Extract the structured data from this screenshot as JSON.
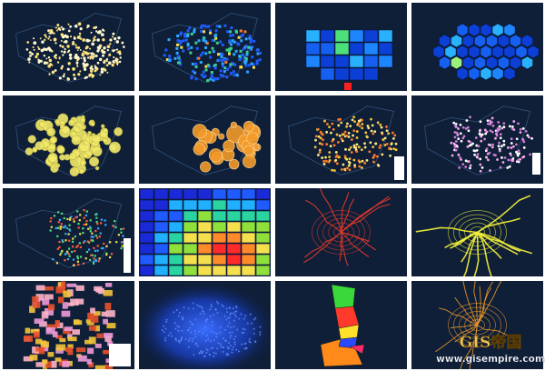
{
  "watermark": {
    "logo": "GIS帝国",
    "url": "www.gisempire.com"
  }
}
